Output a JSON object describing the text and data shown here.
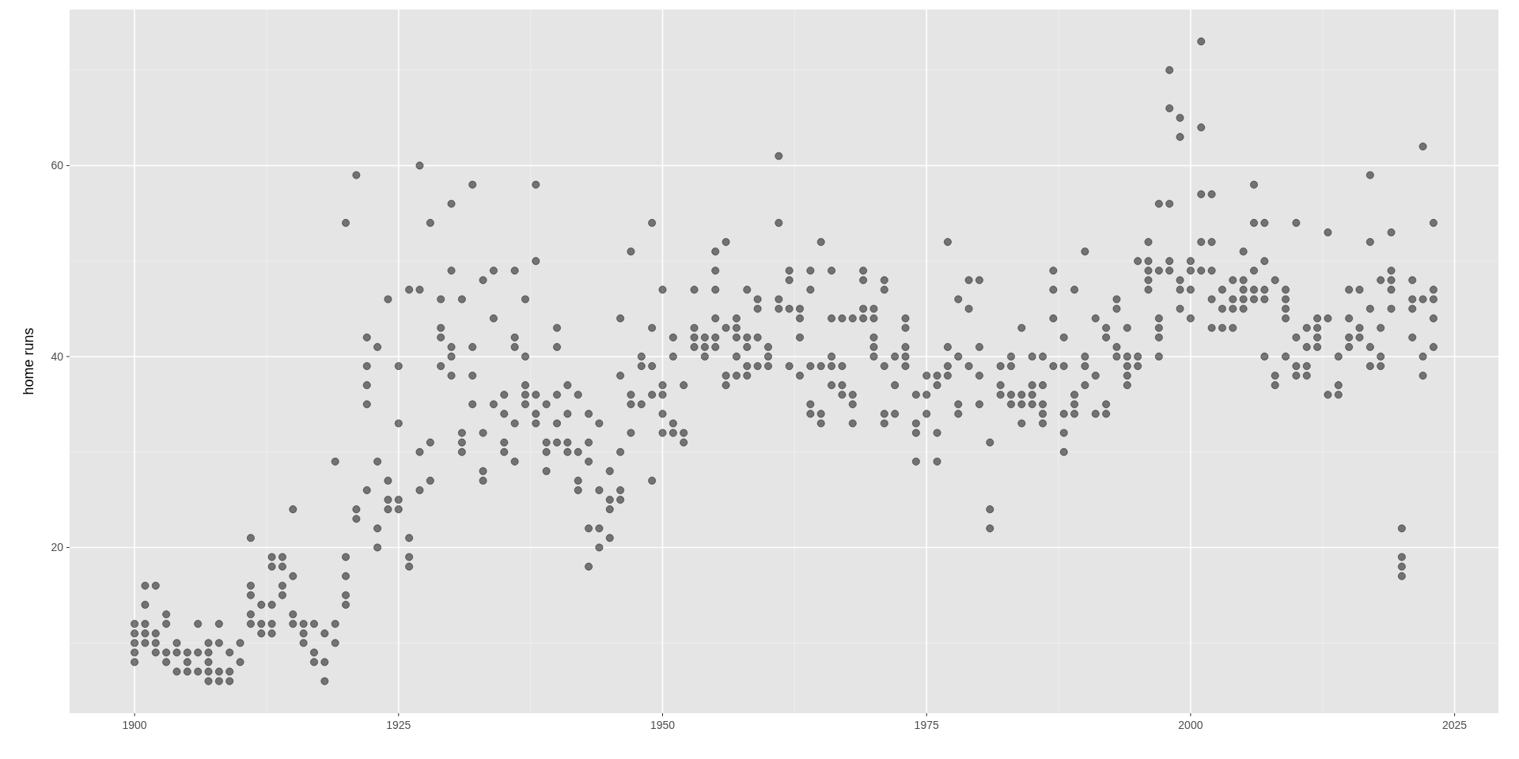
{
  "chart_data": {
    "type": "scatter",
    "ylabel": "home runs",
    "xlim": [
      1893.85,
      2029.15
    ],
    "ylim": [
      2.65,
      76.35
    ],
    "xticks": [
      1900,
      1925,
      1950,
      1975,
      2000,
      2025
    ],
    "yticks": [
      20,
      40,
      60
    ],
    "grid": true,
    "marker": "circle",
    "series": [
      {
        "color": "#000000",
        "x": [
          1900,
          1900,
          1900,
          1900,
          1900,
          1901,
          1901,
          1901,
          1901,
          1901,
          1902,
          1902,
          1902,
          1902,
          1903,
          1903,
          1903,
          1903,
          1904,
          1904,
          1904,
          1905,
          1905,
          1905,
          1906,
          1906,
          1906,
          1907,
          1907,
          1907,
          1907,
          1907,
          1908,
          1908,
          1908,
          1908,
          1909,
          1909,
          1909,
          1910,
          1910,
          1911,
          1911,
          1911,
          1911,
          1911,
          1912,
          1912,
          1912,
          1913,
          1913,
          1913,
          1913,
          1913,
          1914,
          1914,
          1914,
          1914,
          1915,
          1915,
          1915,
          1915,
          1916,
          1916,
          1916,
          1917,
          1917,
          1917,
          1918,
          1918,
          1918,
          1919,
          1919,
          1919,
          1920,
          1920,
          1920,
          1920,
          1920,
          1921,
          1921,
          1921,
          1922,
          1922,
          1922,
          1922,
          1922,
          1923,
          1923,
          1923,
          1923,
          1924,
          1924,
          1924,
          1924,
          1925,
          1925,
          1925,
          1925,
          1926,
          1926,
          1926,
          1926,
          1927,
          1927,
          1927,
          1927,
          1928,
          1928,
          1928,
          1929,
          1929,
          1929,
          1929,
          1930,
          1930,
          1930,
          1930,
          1930,
          1931,
          1931,
          1931,
          1931,
          1932,
          1932,
          1932,
          1932,
          1933,
          1933,
          1933,
          1933,
          1934,
          1934,
          1934,
          1935,
          1935,
          1935,
          1935,
          1936,
          1936,
          1936,
          1936,
          1936,
          1937,
          1937,
          1937,
          1937,
          1937,
          1938,
          1938,
          1938,
          1938,
          1938,
          1939,
          1939,
          1939,
          1939,
          1940,
          1940,
          1940,
          1940,
          1940,
          1941,
          1941,
          1941,
          1941,
          1942,
          1942,
          1942,
          1942,
          1943,
          1943,
          1943,
          1943,
          1943,
          1944,
          1944,
          1944,
          1944,
          1945,
          1945,
          1945,
          1945,
          1946,
          1946,
          1946,
          1946,
          1946,
          1947,
          1947,
          1947,
          1947,
          1948,
          1948,
          1948,
          1949,
          1949,
          1949,
          1949,
          1949,
          1950,
          1950,
          1950,
          1950,
          1950,
          1951,
          1951,
          1951,
          1951,
          1952,
          1952,
          1952,
          1953,
          1953,
          1953,
          1953,
          1954,
          1954,
          1954,
          1955,
          1955,
          1955,
          1955,
          1955,
          1955,
          1956,
          1956,
          1956,
          1956,
          1957,
          1957,
          1957,
          1957,
          1957,
          1958,
          1958,
          1958,
          1958,
          1958,
          1959,
          1959,
          1959,
          1959,
          1960,
          1960,
          1960,
          1961,
          1961,
          1961,
          1961,
          1962,
          1962,
          1962,
          1962,
          1963,
          1963,
          1963,
          1963,
          1964,
          1964,
          1964,
          1964,
          1964,
          1965,
          1965,
          1965,
          1965,
          1966,
          1966,
          1966,
          1966,
          1966,
          1967,
          1967,
          1967,
          1967,
          1968,
          1968,
          1968,
          1968,
          1969,
          1969,
          1969,
          1969,
          1970,
          1970,
          1970,
          1970,
          1970,
          1971,
          1971,
          1971,
          1971,
          1971,
          1972,
          1972,
          1972,
          1973,
          1973,
          1973,
          1973,
          1973,
          1974,
          1974,
          1974,
          1974,
          1975,
          1975,
          1975,
          1976,
          1976,
          1976,
          1976,
          1977,
          1977,
          1977,
          1977,
          1978,
          1978,
          1978,
          1978,
          1979,
          1979,
          1979,
          1980,
          1980,
          1980,
          1980,
          1981,
          1981,
          1981,
          1982,
          1982,
          1982,
          1983,
          1983,
          1983,
          1983,
          1984,
          1984,
          1984,
          1984,
          1985,
          1985,
          1985,
          1985,
          1986,
          1986,
          1986,
          1986,
          1986,
          1987,
          1987,
          1987,
          1987,
          1988,
          1988,
          1988,
          1988,
          1988,
          1989,
          1989,
          1989,
          1989,
          1990,
          1990,
          1990,
          1990,
          1991,
          1991,
          1991,
          1992,
          1992,
          1992,
          1992,
          1993,
          1993,
          1993,
          1993,
          1994,
          1994,
          1994,
          1994,
          1994,
          1995,
          1995,
          1995,
          1996,
          1996,
          1996,
          1996,
          1996,
          1997,
          1997,
          1997,
          1997,
          1997,
          1997,
          1998,
          1998,
          1998,
          1998,
          1998,
          1999,
          1999,
          1999,
          1999,
          1999,
          2000,
          2000,
          2000,
          2000,
          2001,
          2001,
          2001,
          2001,
          2001,
          2002,
          2002,
          2002,
          2002,
          2002,
          2003,
          2003,
          2003,
          2004,
          2004,
          2004,
          2004,
          2005,
          2005,
          2005,
          2005,
          2005,
          2006,
          2006,
          2006,
          2006,
          2006,
          2007,
          2007,
          2007,
          2007,
          2007,
          2008,
          2008,
          2008,
          2009,
          2009,
          2009,
          2009,
          2009,
          2010,
          2010,
          2010,
          2010,
          2011,
          2011,
          2011,
          2011,
          2012,
          2012,
          2012,
          2012,
          2013,
          2013,
          2013,
          2014,
          2014,
          2014,
          2015,
          2015,
          2015,
          2015,
          2016,
          2016,
          2016,
          2017,
          2017,
          2017,
          2017,
          2017,
          2018,
          2018,
          2018,
          2018,
          2019,
          2019,
          2019,
          2019,
          2019,
          2020,
          2020,
          2020,
          2020,
          2021,
          2021,
          2021,
          2021,
          2022,
          2022,
          2022,
          2022,
          2023,
          2023,
          2023,
          2023,
          2023
        ],
        "values": [
          12,
          11,
          10,
          9,
          8,
          16,
          14,
          12,
          11,
          10,
          16,
          11,
          10,
          9,
          13,
          12,
          9,
          8,
          10,
          9,
          7,
          9,
          8,
          7,
          12,
          9,
          7,
          10,
          9,
          8,
          7,
          6,
          12,
          10,
          7,
          6,
          9,
          7,
          6,
          10,
          8,
          21,
          16,
          15,
          13,
          12,
          14,
          12,
          11,
          19,
          18,
          14,
          12,
          11,
          19,
          18,
          16,
          15,
          24,
          17,
          13,
          12,
          12,
          11,
          10,
          12,
          9,
          8,
          11,
          8,
          6,
          29,
          12,
          10,
          54,
          19,
          17,
          15,
          14,
          59,
          24,
          23,
          42,
          39,
          37,
          35,
          26,
          41,
          29,
          22,
          20,
          46,
          27,
          25,
          24,
          39,
          33,
          25,
          24,
          47,
          21,
          19,
          18,
          60,
          47,
          30,
          26,
          54,
          31,
          27,
          46,
          43,
          42,
          39,
          56,
          49,
          41,
          40,
          38,
          46,
          32,
          31,
          30,
          58,
          41,
          38,
          35,
          48,
          32,
          28,
          27,
          49,
          44,
          35,
          36,
          34,
          31,
          30,
          49,
          42,
          41,
          33,
          29,
          46,
          40,
          37,
          36,
          35,
          58,
          50,
          36,
          34,
          33,
          35,
          31,
          30,
          28,
          43,
          41,
          36,
          33,
          31,
          37,
          34,
          31,
          30,
          36,
          30,
          27,
          26,
          34,
          31,
          29,
          22,
          18,
          33,
          26,
          22,
          20,
          28,
          25,
          24,
          21,
          44,
          38,
          30,
          26,
          25,
          51,
          36,
          35,
          32,
          40,
          39,
          35,
          54,
          43,
          39,
          36,
          27,
          47,
          37,
          36,
          34,
          32,
          42,
          40,
          33,
          32,
          37,
          32,
          31,
          47,
          43,
          42,
          41,
          42,
          41,
          40,
          51,
          49,
          47,
          44,
          42,
          41,
          52,
          43,
          38,
          37,
          44,
          43,
          42,
          40,
          38,
          47,
          42,
          41,
          39,
          38,
          46,
          45,
          42,
          39,
          41,
          40,
          39,
          61,
          54,
          46,
          45,
          49,
          48,
          45,
          39,
          45,
          44,
          42,
          38,
          49,
          47,
          39,
          35,
          34,
          52,
          39,
          34,
          33,
          49,
          44,
          40,
          39,
          37,
          44,
          39,
          37,
          36,
          44,
          36,
          35,
          33,
          49,
          48,
          45,
          44,
          45,
          44,
          42,
          41,
          40,
          48,
          47,
          39,
          34,
          33,
          40,
          37,
          34,
          44,
          43,
          41,
          40,
          39,
          36,
          33,
          32,
          29,
          38,
          36,
          34,
          38,
          37,
          32,
          29,
          52,
          41,
          39,
          38,
          46,
          40,
          35,
          34,
          48,
          45,
          39,
          48,
          41,
          38,
          35,
          31,
          24,
          22,
          39,
          37,
          36,
          40,
          39,
          36,
          35,
          43,
          36,
          35,
          33,
          40,
          37,
          36,
          35,
          40,
          37,
          35,
          34,
          33,
          49,
          47,
          44,
          39,
          42,
          39,
          34,
          32,
          30,
          47,
          36,
          35,
          34,
          51,
          40,
          39,
          37,
          44,
          38,
          34,
          43,
          42,
          35,
          34,
          46,
          45,
          41,
          40,
          43,
          40,
          39,
          38,
          37,
          50,
          40,
          39,
          52,
          50,
          49,
          48,
          47,
          56,
          49,
          44,
          43,
          42,
          40,
          70,
          66,
          56,
          50,
          49,
          65,
          63,
          48,
          47,
          45,
          50,
          49,
          47,
          44,
          73,
          64,
          57,
          52,
          49,
          57,
          52,
          49,
          46,
          43,
          47,
          45,
          43,
          48,
          46,
          45,
          43,
          51,
          48,
          47,
          46,
          45,
          58,
          54,
          49,
          47,
          46,
          54,
          50,
          47,
          46,
          40,
          48,
          38,
          37,
          47,
          46,
          45,
          44,
          40,
          54,
          42,
          39,
          38,
          43,
          41,
          39,
          38,
          44,
          43,
          42,
          41,
          53,
          44,
          36,
          40,
          37,
          36,
          47,
          44,
          42,
          41,
          47,
          43,
          42,
          59,
          52,
          45,
          41,
          39,
          48,
          43,
          40,
          39,
          53,
          49,
          48,
          47,
          45,
          22,
          19,
          18,
          17,
          48,
          46,
          45,
          42,
          62,
          46,
          40,
          38,
          54,
          47,
          46,
          44,
          41
        ]
      }
    ]
  }
}
